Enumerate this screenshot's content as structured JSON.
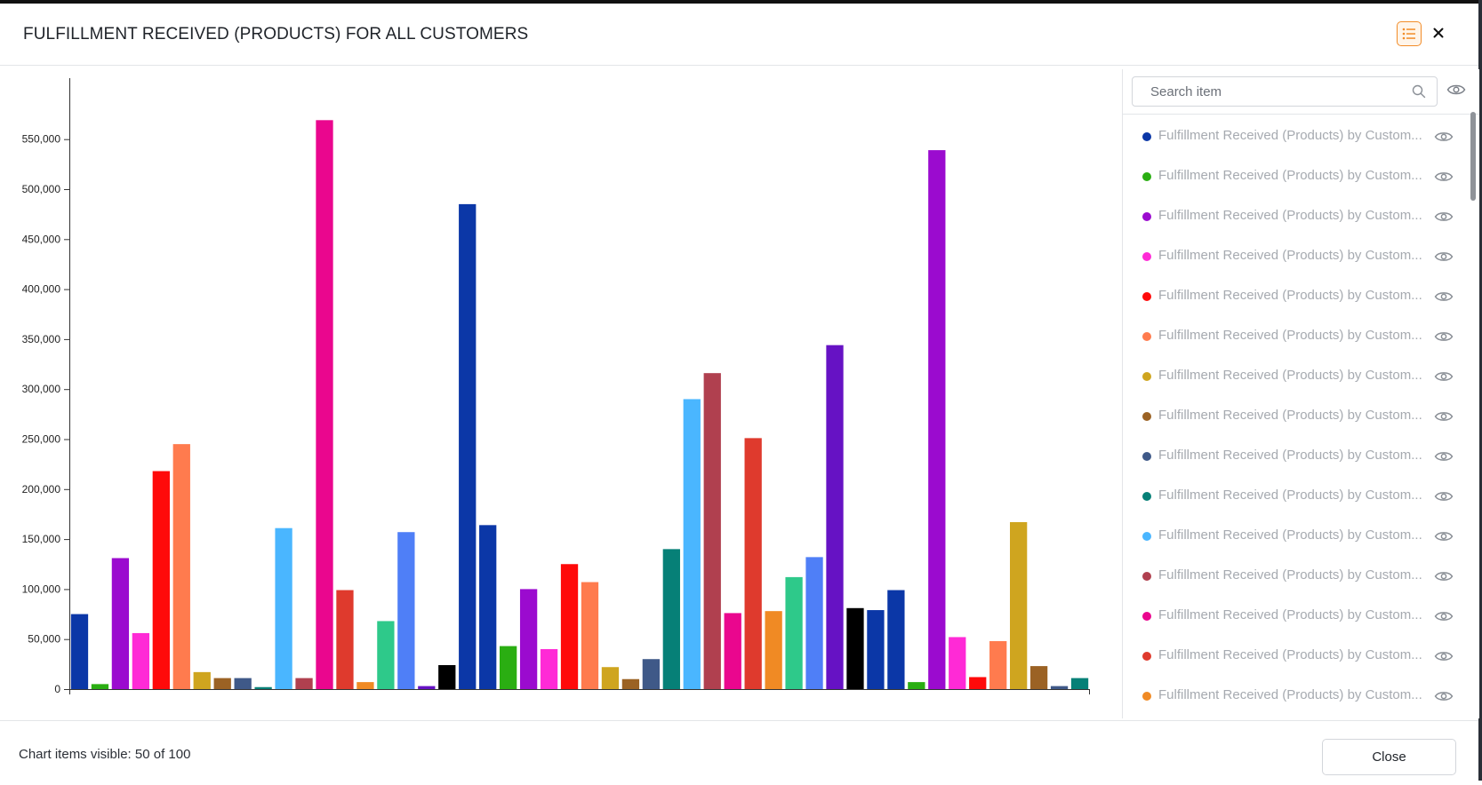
{
  "header": {
    "title": "FULFILLMENT RECEIVED (PRODUCTS) FOR ALL CUSTOMERS",
    "legend_toggle_icon": "list-icon",
    "close_icon": "close-icon"
  },
  "search": {
    "placeholder": "Search item",
    "icon": "search-icon",
    "toggle_all_icon": "eye-icon"
  },
  "legend": {
    "items": [
      {
        "label": "Fulfillment Received (Products) by Custom...",
        "color": "#0b37a7"
      },
      {
        "label": "Fulfillment Received (Products) by Custom...",
        "color": "#2aae12"
      },
      {
        "label": "Fulfillment Received (Products) by Custom...",
        "color": "#9b0bcf"
      },
      {
        "label": "Fulfillment Received (Products) by Custom...",
        "color": "#ff2ad6"
      },
      {
        "label": "Fulfillment Received (Products) by Custom...",
        "color": "#ff0a0a"
      },
      {
        "label": "Fulfillment Received (Products) by Custom...",
        "color": "#ff7b4e"
      },
      {
        "label": "Fulfillment Received (Products) by Custom...",
        "color": "#cfa51f"
      },
      {
        "label": "Fulfillment Received (Products) by Custom...",
        "color": "#9b6224"
      },
      {
        "label": "Fulfillment Received (Products) by Custom...",
        "color": "#3f5988"
      },
      {
        "label": "Fulfillment Received (Products) by Custom...",
        "color": "#068077"
      },
      {
        "label": "Fulfillment Received (Products) by Custom...",
        "color": "#4ab6ff"
      },
      {
        "label": "Fulfillment Received (Products) by Custom...",
        "color": "#b0404f"
      },
      {
        "label": "Fulfillment Received (Products) by Custom...",
        "color": "#ea068e"
      },
      {
        "label": "Fulfillment Received (Products) by Custom...",
        "color": "#df3a2d"
      },
      {
        "label": "Fulfillment Received (Products) by Custom...",
        "color": "#f08a24"
      }
    ]
  },
  "footer": {
    "status": "Chart items visible: 50 of 100",
    "close_label": "Close"
  },
  "chart_data": {
    "type": "bar",
    "title": "",
    "xlabel": "",
    "ylabel": "",
    "ylim": [
      0,
      570000
    ],
    "yticks": [
      "0",
      "50,000",
      "100,000",
      "150,000",
      "200,000",
      "250,000",
      "300,000",
      "350,000",
      "400,000",
      "450,000",
      "500,000",
      "550,000"
    ],
    "grid": false,
    "legend": "right panel",
    "bars": [
      {
        "value": 75000,
        "color": "#0b37a7"
      },
      {
        "value": 5000,
        "color": "#2aae12"
      },
      {
        "value": 131000,
        "color": "#9b0bcf"
      },
      {
        "value": 56000,
        "color": "#ff2ad6"
      },
      {
        "value": 218000,
        "color": "#ff0a0a"
      },
      {
        "value": 245000,
        "color": "#ff7b4e"
      },
      {
        "value": 17000,
        "color": "#cfa51f"
      },
      {
        "value": 11000,
        "color": "#9b6224"
      },
      {
        "value": 11000,
        "color": "#3f5988"
      },
      {
        "value": 2000,
        "color": "#068077"
      },
      {
        "value": 161000,
        "color": "#4ab6ff"
      },
      {
        "value": 11000,
        "color": "#b0404f"
      },
      {
        "value": 569000,
        "color": "#ea068e"
      },
      {
        "value": 99000,
        "color": "#df3a2d"
      },
      {
        "value": 7000,
        "color": "#f08a24"
      },
      {
        "value": 68000,
        "color": "#2ec98a"
      },
      {
        "value": 157000,
        "color": "#4f7ff7"
      },
      {
        "value": 3000,
        "color": "#6612c4"
      },
      {
        "value": 24000,
        "color": "#000000"
      },
      {
        "value": 485000,
        "color": "#0b37a7"
      },
      {
        "value": 164000,
        "color": "#0b37a7"
      },
      {
        "value": 43000,
        "color": "#2aae12"
      },
      {
        "value": 100000,
        "color": "#9b0bcf"
      },
      {
        "value": 40000,
        "color": "#ff2ad6"
      },
      {
        "value": 125000,
        "color": "#ff0a0a"
      },
      {
        "value": 107000,
        "color": "#ff7b4e"
      },
      {
        "value": 22000,
        "color": "#cfa51f"
      },
      {
        "value": 10000,
        "color": "#9b6224"
      },
      {
        "value": 30000,
        "color": "#3f5988"
      },
      {
        "value": 140000,
        "color": "#068077"
      },
      {
        "value": 290000,
        "color": "#4ab6ff"
      },
      {
        "value": 316000,
        "color": "#b0404f"
      },
      {
        "value": 76000,
        "color": "#ea068e"
      },
      {
        "value": 251000,
        "color": "#df3a2d"
      },
      {
        "value": 78000,
        "color": "#f08a24"
      },
      {
        "value": 112000,
        "color": "#2ec98a"
      },
      {
        "value": 132000,
        "color": "#4f7ff7"
      },
      {
        "value": 344000,
        "color": "#6612c4"
      },
      {
        "value": 81000,
        "color": "#000000"
      },
      {
        "value": 79000,
        "color": "#0b37a7"
      },
      {
        "value": 99000,
        "color": "#0b37a7"
      },
      {
        "value": 7000,
        "color": "#2aae12"
      },
      {
        "value": 539000,
        "color": "#9b0bcf"
      },
      {
        "value": 52000,
        "color": "#ff2ad6"
      },
      {
        "value": 12000,
        "color": "#ff0a0a"
      },
      {
        "value": 48000,
        "color": "#ff7b4e"
      },
      {
        "value": 167000,
        "color": "#cfa51f"
      },
      {
        "value": 23000,
        "color": "#9b6224"
      },
      {
        "value": 3000,
        "color": "#3f5988"
      },
      {
        "value": 11000,
        "color": "#068077"
      }
    ]
  }
}
